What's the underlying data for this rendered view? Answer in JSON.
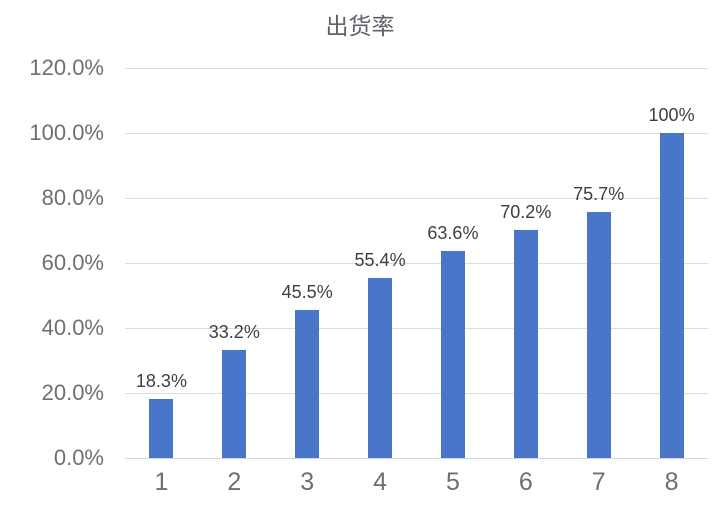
{
  "chart_data": {
    "type": "bar",
    "title": "出货率",
    "categories": [
      "1",
      "2",
      "3",
      "4",
      "5",
      "6",
      "7",
      "8"
    ],
    "values": [
      18.3,
      33.2,
      45.5,
      55.4,
      63.6,
      70.2,
      75.7,
      100
    ],
    "data_labels": [
      "18.3%",
      "33.2%",
      "45.5%",
      "55.4%",
      "63.6%",
      "70.2%",
      "75.7%",
      "100%"
    ],
    "xlabel": "",
    "ylabel": "",
    "ylim": [
      0,
      120
    ],
    "y_tick_values": [
      0,
      20,
      40,
      60,
      80,
      100,
      120
    ],
    "y_tick_labels": [
      "0.0%",
      "20.0%",
      "40.0%",
      "60.0%",
      "80.0%",
      "100.0%",
      "120.0%"
    ],
    "grid": true,
    "legend_position": "none",
    "colors": {
      "bar": "#4a76c9",
      "gridline": "#dadce0",
      "title_text": "#5f6368",
      "tick_text": "#6f6f6f",
      "data_label_text": "#3c4043",
      "background": "#ffffff"
    }
  }
}
